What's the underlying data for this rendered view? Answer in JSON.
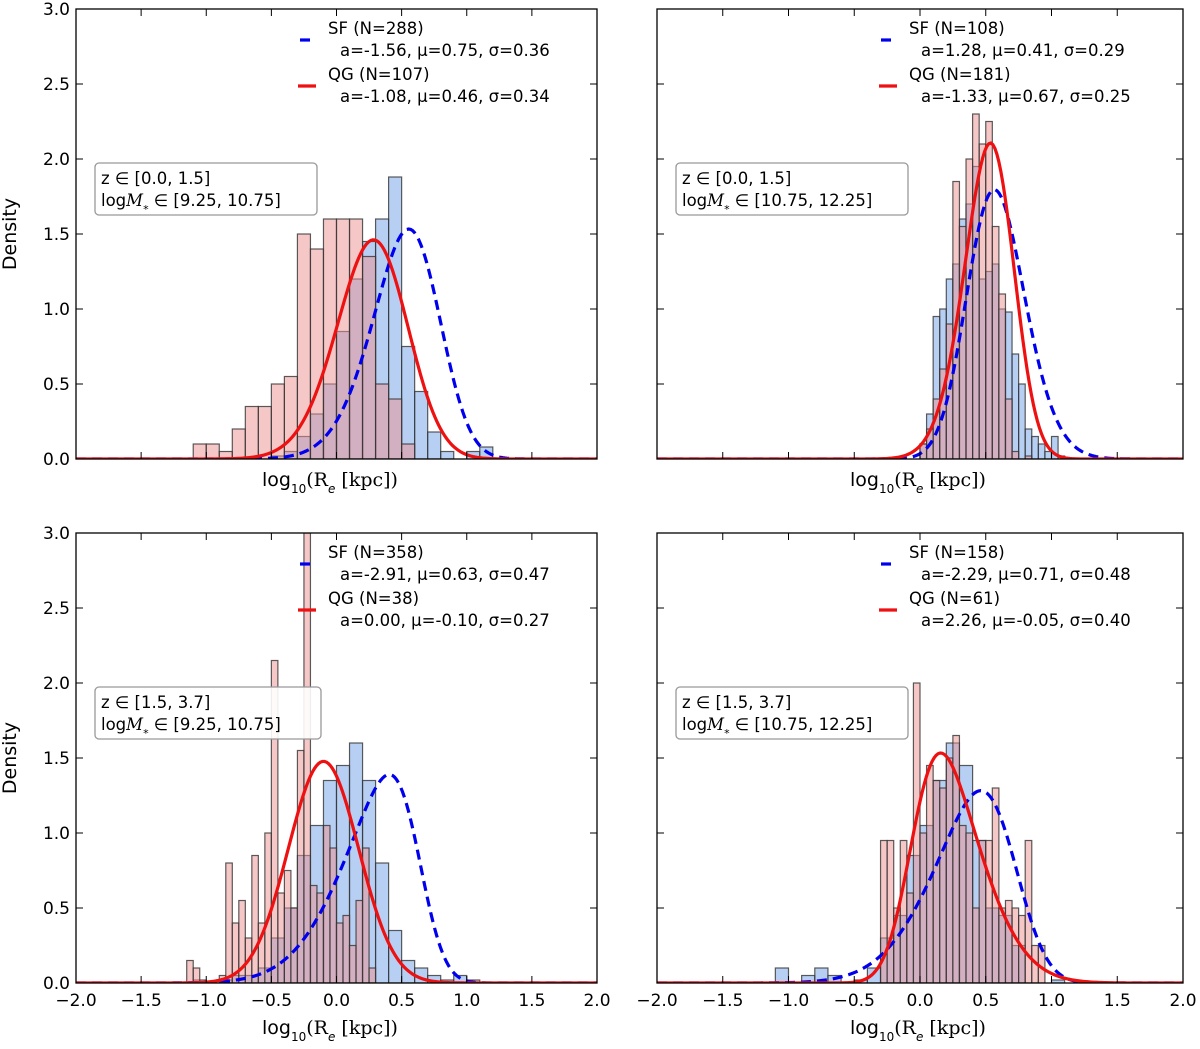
{
  "figure": {
    "y_axis_label": "Density",
    "x_axis_label_prefix": "log",
    "x_axis_label_sub": "10",
    "x_axis_label_body": "(R",
    "x_axis_label_sub2": "e",
    "x_axis_label_unit": " [kpc])"
  },
  "colors": {
    "sf_line": "#0000ee",
    "qg_line": "#ee1111",
    "sf_bar": "#6f9fe6",
    "qg_bar": "#ee8f8f",
    "bar_edge": "#333333"
  },
  "chart_data": [
    {
      "type": "bar",
      "panel": "top-left",
      "xlim": [
        -2.0,
        2.0
      ],
      "ylim": [
        0.0,
        3.0
      ],
      "yticks": [
        "0.0",
        "0.5",
        "1.0",
        "1.5",
        "2.0",
        "2.5",
        "3.0"
      ],
      "xticks": [],
      "show_y_ticklabels": true,
      "show_x_ticklabels": false,
      "annotation": {
        "line1": "z ∈ [0.0, 1.5]",
        "line2_prefix": "log",
        "line2_M": "M",
        "line2_sub": "*",
        "line2_range": " ∈ [9.25, 10.75]"
      },
      "series": [
        {
          "name": "SF",
          "legend_label": "SF (N=288)",
          "params_label": "a=-1.56, μ=0.75, σ=0.36",
          "hist_bin_start": -1.2,
          "bin_width": 0.1,
          "hist_values": [
            0,
            0,
            0,
            0,
            0,
            0,
            0,
            0.02,
            0.05,
            0.15,
            0.3,
            0.5,
            0.85,
            1.2,
            1.45,
            1.6,
            1.88,
            0.75,
            0.45,
            0.18,
            0.05,
            0,
            0.05,
            0.08
          ],
          "fit": {
            "a": -1.56,
            "mu": 0.75,
            "sigma": 0.36
          }
        },
        {
          "name": "QG",
          "legend_label": "QG (N=107)",
          "params_label": "a=-1.08, μ=0.46, σ=0.34",
          "hist_bin_start": -1.1,
          "bin_width": 0.1,
          "hist_values": [
            0.1,
            0.1,
            0.05,
            0.2,
            0.35,
            0.35,
            0.5,
            0.55,
            1.5,
            1.4,
            1.6,
            1.6,
            1.6,
            1.35,
            0.5,
            0.4,
            0.1
          ],
          "fit": {
            "a": -1.08,
            "mu": 0.46,
            "sigma": 0.34
          }
        }
      ]
    },
    {
      "type": "bar",
      "panel": "top-right",
      "xlim": [
        -2.0,
        2.0
      ],
      "ylim": [
        0.0,
        3.0
      ],
      "yticks": [
        "0.0",
        "0.5",
        "1.0",
        "1.5",
        "2.0",
        "2.5",
        "3.0"
      ],
      "xticks": [],
      "show_y_ticklabels": false,
      "show_x_ticklabels": false,
      "annotation": {
        "line1": "z ∈ [0.0, 1.5]",
        "line2_prefix": "log",
        "line2_M": "M",
        "line2_sub": "*",
        "line2_range": " ∈ [10.75, 12.25]"
      },
      "series": [
        {
          "name": "SF",
          "legend_label": "SF (N=108)",
          "params_label": "a=1.28, μ=0.41, σ=0.29",
          "hist_bin_start": 0.0,
          "bin_width": 0.05,
          "hist_values": [
            0.1,
            0.3,
            0.95,
            1.0,
            1.2,
            1.3,
            1.6,
            1.7,
            1.95,
            1.2,
            1.25,
            1.3,
            1.0,
            0.98,
            0.7,
            0.5,
            0.2,
            0.15,
            0.1,
            0.05,
            0.15,
            0.02
          ],
          "fit": {
            "a": 1.28,
            "mu": 0.41,
            "sigma": 0.29
          }
        },
        {
          "name": "QG",
          "legend_label": "QG (N=181)",
          "params_label": "a=-1.33, μ=0.67, σ=0.25",
          "hist_bin_start": 0.0,
          "bin_width": 0.05,
          "hist_values": [
            0.1,
            0.2,
            0.4,
            0.6,
            0.9,
            1.85,
            1.55,
            2.0,
            2.3,
            2.1,
            2.25,
            1.55,
            1.1,
            0.4,
            0.05,
            0,
            0.02
          ],
          "fit": {
            "a": -1.33,
            "mu": 0.67,
            "sigma": 0.25
          }
        }
      ]
    },
    {
      "type": "bar",
      "panel": "bottom-left",
      "xlim": [
        -2.0,
        2.0
      ],
      "ylim": [
        0.0,
        3.0
      ],
      "yticks": [
        "0.0",
        "0.5",
        "1.0",
        "1.5",
        "2.0",
        "2.5",
        "3.0"
      ],
      "xticks": [
        "−2.0",
        "−1.5",
        "−1.0",
        "−0.5",
        "0.0",
        "0.5",
        "1.0",
        "1.5",
        "2.0"
      ],
      "show_y_ticklabels": true,
      "show_x_ticklabels": true,
      "annotation": {
        "line1": "z ∈ [1.5, 3.7]",
        "line2_prefix": "log",
        "line2_M": "M",
        "line2_sub": "*",
        "line2_range": " ∈ [9.25, 10.75]"
      },
      "series": [
        {
          "name": "SF",
          "legend_label": "SF (N=358)",
          "params_label": "a=-2.91, μ=0.63, σ=0.47",
          "hist_bin_start": -1.2,
          "bin_width": 0.1,
          "hist_values": [
            0,
            0.02,
            0,
            0.02,
            0.05,
            0.05,
            0.1,
            0.3,
            0.5,
            0.85,
            1.05,
            1.35,
            1.45,
            1.6,
            1.35,
            0.8,
            0.35,
            0.15,
            0.1,
            0.05,
            0.02,
            0.05,
            0.02
          ],
          "fit": {
            "a": -2.91,
            "mu": 0.63,
            "sigma": 0.47
          }
        },
        {
          "name": "QG",
          "legend_label": "QG (N=38)",
          "params_label": "a=0.00, μ=-0.10, σ=0.27",
          "hist_bin_start": -1.15,
          "bin_width": 0.05,
          "hist_values": [
            0.15,
            0.1,
            0,
            0,
            0,
            0.05,
            0.8,
            0.4,
            0.55,
            0.3,
            0.85,
            0.4,
            1.0,
            2.15,
            0.6,
            0.75,
            0.5,
            1.55,
            3.0,
            0.65,
            0.6,
            1.05,
            0.9,
            0.4,
            0.45,
            0.25,
            0.55,
            0.9,
            0.1
          ],
          "fit": {
            "a": 0.0,
            "mu": -0.1,
            "sigma": 0.27
          }
        }
      ]
    },
    {
      "type": "bar",
      "panel": "bottom-right",
      "xlim": [
        -2.0,
        2.0
      ],
      "ylim": [
        0.0,
        3.0
      ],
      "yticks": [
        "0.0",
        "0.5",
        "1.0",
        "1.5",
        "2.0",
        "2.5",
        "3.0"
      ],
      "xticks": [
        "−2.0",
        "−1.5",
        "−1.0",
        "−0.5",
        "0.0",
        "0.5",
        "1.0",
        "1.5",
        "2.0"
      ],
      "show_y_ticklabels": false,
      "show_x_ticklabels": true,
      "annotation": {
        "line1": "z ∈ [1.5, 3.7]",
        "line2_prefix": "log",
        "line2_M": "M",
        "line2_sub": "*",
        "line2_range": " ∈ [10.75, 12.25]"
      },
      "series": [
        {
          "name": "SF",
          "legend_label": "SF (N=158)",
          "params_label": "a=-2.29, μ=0.71, σ=0.48",
          "hist_bin_start": -1.1,
          "bin_width": 0.1,
          "hist_values": [
            0.1,
            0,
            0.05,
            0.1,
            0.05,
            0,
            0.02,
            0.1,
            0.3,
            0.45,
            0.85,
            1.05,
            1.35,
            1.6,
            1.45,
            0.95,
            0.5,
            0.45,
            0.25,
            0,
            0,
            0.02
          ],
          "fit": {
            "a": -2.29,
            "mu": 0.71,
            "sigma": 0.48
          }
        },
        {
          "name": "QG",
          "legend_label": "QG (N=61)",
          "params_label": "a=2.26, μ=-0.05, σ=0.40",
          "hist_bin_start": -0.3,
          "bin_width": 0.05,
          "hist_values": [
            0.95,
            0.95,
            0.5,
            0.95,
            0.6,
            2.0,
            1.0,
            1.45,
            1.35,
            1.3,
            1.5,
            1.65,
            1.05,
            1.0,
            0.5,
            0.95,
            0.95,
            1.3,
            0.5,
            0.55,
            0.5,
            0.45,
            0.95,
            0.25,
            0.25
          ],
          "fit": {
            "a": 2.26,
            "mu": -0.05,
            "sigma": 0.4
          }
        }
      ]
    }
  ]
}
